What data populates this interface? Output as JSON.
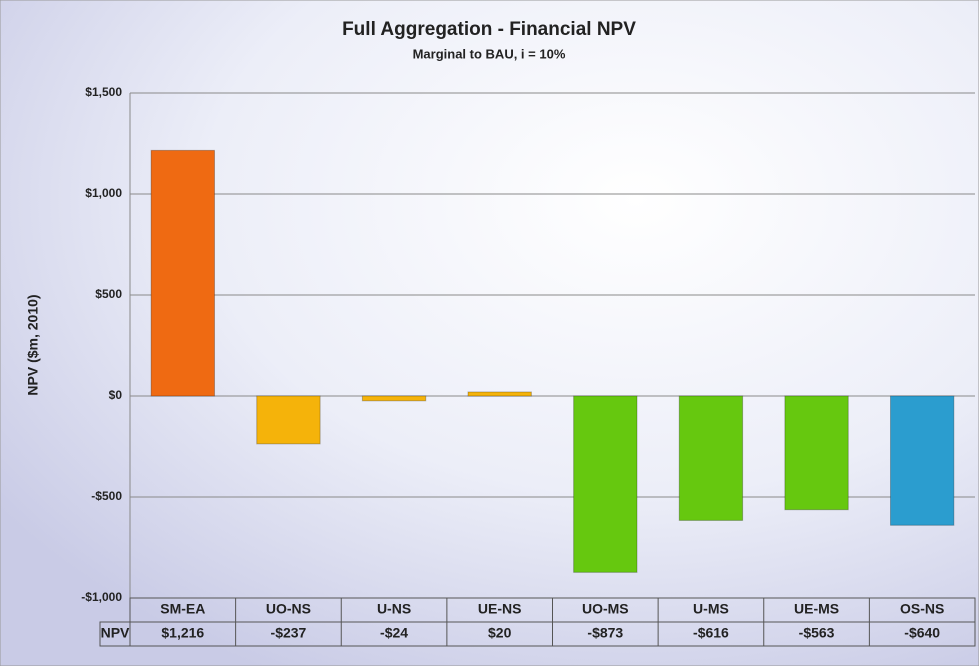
{
  "chart_data": {
    "type": "bar",
    "title": "Full Aggregation - Financial NPV",
    "subtitle": "Marginal to BAU, i = 10%",
    "y_label": "NPV ($m, 2010)",
    "categories": [
      "SM-EA",
      "UO-NS",
      "U-NS",
      "UE-NS",
      "UO-MS",
      "U-MS",
      "UE-MS",
      "OS-NS"
    ],
    "series": [
      {
        "name": "NPV",
        "values": [
          1216,
          -237,
          -24,
          20,
          -873,
          -616,
          -563,
          -640
        ],
        "value_labels": [
          "$1,216",
          "-$237",
          "-$24",
          "$20",
          "-$873",
          "-$616",
          "-$563",
          "-$640"
        ],
        "colors": [
          "#ef6a12",
          "#f5b30a",
          "#f5b30a",
          "#f5b30a",
          "#66c80f",
          "#66c80f",
          "#66c80f",
          "#2b9dcf"
        ]
      }
    ],
    "ylim": [
      -1000,
      1500
    ],
    "yticks": [
      {
        "value": -1000,
        "label": "-$1,000"
      },
      {
        "value": -500,
        "label": "-$500"
      },
      {
        "value": 0,
        "label": "$0"
      },
      {
        "value": 500,
        "label": "$500"
      },
      {
        "value": 1000,
        "label": "$1,000"
      },
      {
        "value": 1500,
        "label": "$1,500"
      }
    ],
    "grid": true
  }
}
